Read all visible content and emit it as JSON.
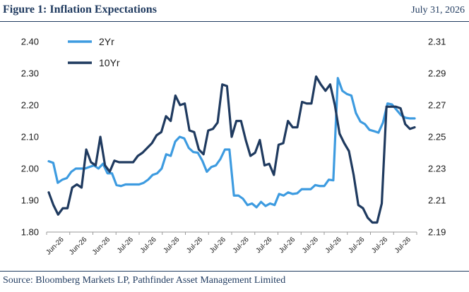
{
  "header": {
    "title": "Figure 1: Inflation Expectations",
    "date": "July 31, 2026"
  },
  "footer": {
    "source": "Source: Bloomberg Markets LP, Pathfinder Asset Management Limited"
  },
  "colors": {
    "series_2yr": "#3d9be0",
    "series_10yr": "#1f3a5f",
    "rule": "#1f3a5f",
    "axis": "#999999"
  },
  "chart_data": {
    "type": "line",
    "legend_position": "top-left",
    "grid": false,
    "y_left": {
      "ylim": [
        1.8,
        2.4
      ],
      "ticks": [
        "1.80",
        "1.90",
        "2.00",
        "2.10",
        "2.20",
        "2.30",
        "2.40"
      ]
    },
    "y_right": {
      "ylim": [
        2.19,
        2.31
      ],
      "ticks": [
        "2.19",
        "2.21",
        "2.23",
        "2.25",
        "2.27",
        "2.29",
        "2.31"
      ]
    },
    "x_tick_labels": [
      "Jun-26",
      "Jun-26",
      "Jun-26",
      "Jul-26",
      "Jul-26",
      "Jul-26",
      "Jul-26",
      "Jul-26",
      "Jul-26",
      "Jul-26",
      "Jul-26",
      "Jul-26",
      "Jul-26",
      "Jul-26",
      "Jul-26",
      "Jul-26"
    ],
    "series": [
      {
        "name": "2Yr",
        "axis": "left",
        "values": [
          2.023,
          2.018,
          1.955,
          1.965,
          1.97,
          1.99,
          2.0,
          2.0,
          2.0,
          2.005,
          2.01,
          2.0,
          2.015,
          1.985,
          1.985,
          1.948,
          1.945,
          1.95,
          1.95,
          1.95,
          1.95,
          1.955,
          1.965,
          1.98,
          1.985,
          2.0,
          2.045,
          2.04,
          2.085,
          2.1,
          2.095,
          2.065,
          2.052,
          2.05,
          2.025,
          1.99,
          2.005,
          2.01,
          2.03,
          2.06,
          2.06,
          1.915,
          1.915,
          1.905,
          1.885,
          1.89,
          1.878,
          1.895,
          1.882,
          1.89,
          1.885,
          1.92,
          1.915,
          1.925,
          1.92,
          1.922,
          1.935,
          1.935,
          1.935,
          1.948,
          1.945,
          1.945,
          1.965,
          1.963,
          2.285,
          2.245,
          2.235,
          2.23,
          2.175,
          2.148,
          2.14,
          2.122,
          2.118,
          2.113,
          2.145,
          2.205,
          2.202,
          2.185,
          2.168,
          2.16,
          2.158,
          2.158
        ]
      },
      {
        "name": "10Yr",
        "axis": "right",
        "values": [
          2.215,
          2.207,
          2.201,
          2.205,
          2.205,
          2.218,
          2.22,
          2.218,
          2.242,
          2.234,
          2.232,
          2.25,
          2.232,
          2.228,
          2.235,
          2.234,
          2.234,
          2.234,
          2.234,
          2.238,
          2.24,
          2.243,
          2.246,
          2.251,
          2.253,
          2.263,
          2.26,
          2.276,
          2.27,
          2.271,
          2.254,
          2.253,
          2.242,
          2.239,
          2.254,
          2.255,
          2.259,
          2.283,
          2.282,
          2.25,
          2.26,
          2.26,
          2.248,
          2.238,
          2.24,
          2.248,
          2.232,
          2.233,
          2.226,
          2.245,
          2.246,
          2.26,
          2.256,
          2.256,
          2.272,
          2.271,
          2.271,
          2.288,
          2.283,
          2.279,
          2.283,
          2.27,
          2.252,
          2.246,
          2.241,
          2.226,
          2.207,
          2.205,
          2.199,
          2.196,
          2.196,
          2.208,
          2.269,
          2.269,
          2.269,
          2.268,
          2.258,
          2.255,
          2.256
        ]
      }
    ]
  }
}
